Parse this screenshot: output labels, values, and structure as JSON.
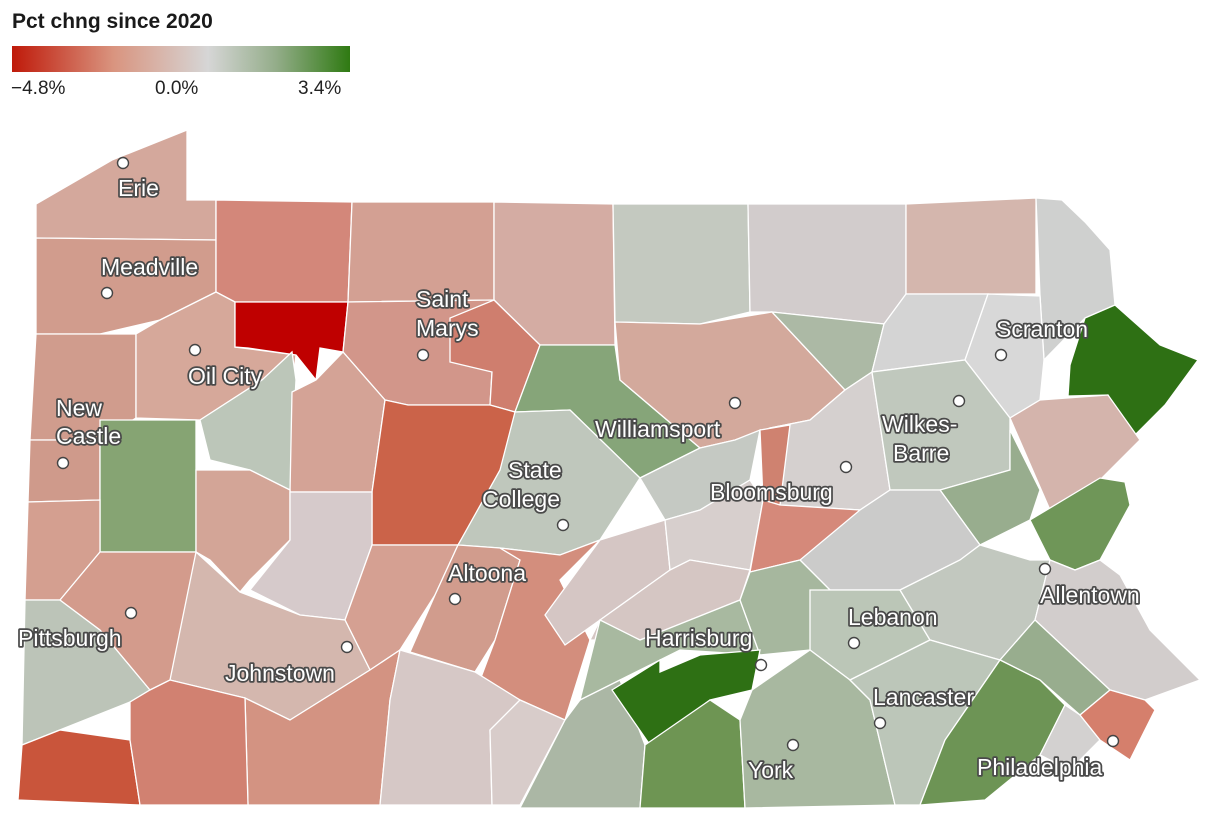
{
  "legend": {
    "title": "Pct chng since 2020",
    "min_label": "−4.8%",
    "mid_label": "0.0%",
    "max_label": "3.4%",
    "min_value": -4.8,
    "max_value": 3.4,
    "colors": [
      "#bf1a0a",
      "#d6d6d6",
      "#2f7a12"
    ]
  },
  "cities": [
    {
      "id": "erie",
      "name": "Erie"
    },
    {
      "id": "meadville",
      "name": "Meadville"
    },
    {
      "id": "oil-city",
      "name": "Oil City"
    },
    {
      "id": "new-castle",
      "name": "New Castle",
      "lines": [
        "New",
        "Castle"
      ]
    },
    {
      "id": "pittsburgh",
      "name": "Pittsburgh"
    },
    {
      "id": "johnstown",
      "name": "Johnstown"
    },
    {
      "id": "altoona",
      "name": "Altoona"
    },
    {
      "id": "saint-marys",
      "name": "Saint Marys",
      "lines": [
        "Saint",
        "Marys"
      ]
    },
    {
      "id": "state-college",
      "name": "State College",
      "lines": [
        "State",
        "College"
      ]
    },
    {
      "id": "williamsport",
      "name": "Williamsport"
    },
    {
      "id": "bloomsburg",
      "name": "Bloomsburg"
    },
    {
      "id": "wilkes-barre",
      "name": "Wilkes-Barre",
      "lines": [
        "Wilkes-",
        "Barre"
      ]
    },
    {
      "id": "scranton",
      "name": "Scranton"
    },
    {
      "id": "allentown",
      "name": "Allentown"
    },
    {
      "id": "harrisburg",
      "name": "Harrisburg"
    },
    {
      "id": "lebanon",
      "name": "Lebanon"
    },
    {
      "id": "lancaster",
      "name": "Lancaster"
    },
    {
      "id": "york",
      "name": "York"
    },
    {
      "id": "philadelphia",
      "name": "Philadelphia"
    }
  ]
}
